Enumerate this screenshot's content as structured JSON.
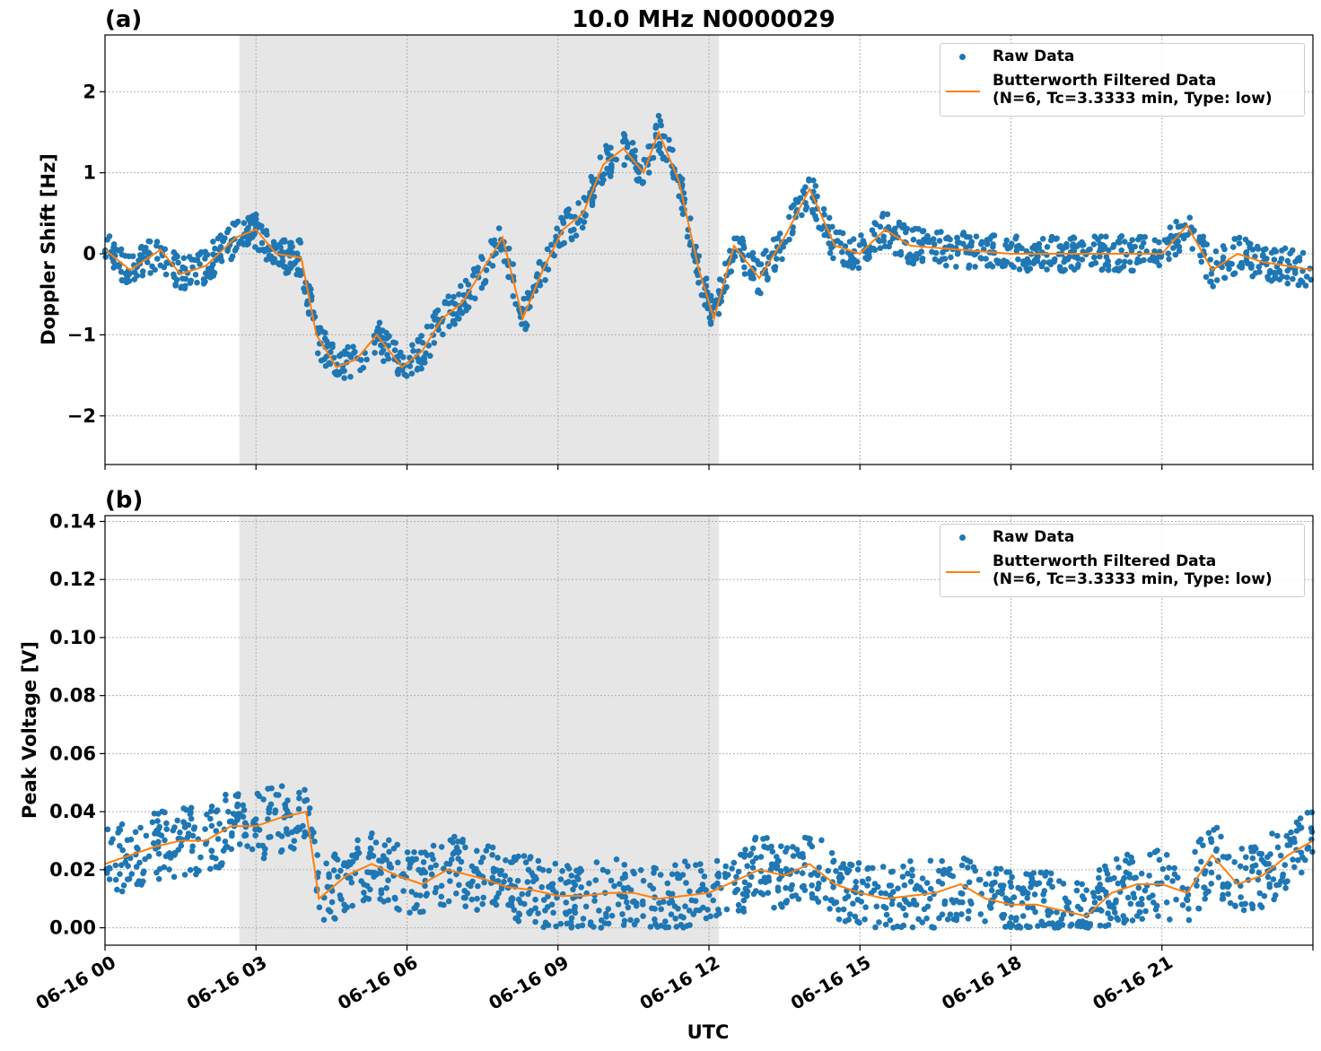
{
  "figure": {
    "title": "10.0 MHz N0000029",
    "xlabel": "UTC",
    "x_tick_labels": [
      "06-16 00",
      "06-16 03",
      "06-16 06",
      "06-16 09",
      "06-16 12",
      "06-16 15",
      "06-16 18",
      "06-16 21"
    ],
    "shaded_span_hours": [
      2.67,
      12.2
    ],
    "colors": {
      "raw": "#1f77b4",
      "filtered": "#ff7f0e",
      "shade": "#e6e6e6",
      "grid": "#b0b0b0"
    }
  },
  "legend": {
    "raw_label": "Raw Data",
    "filtered_label_line1": "Butterworth Filtered Data",
    "filtered_label_line2": "(N=6, Tc=3.3333 min, Type: low)"
  },
  "chart_data": [
    {
      "type": "scatter",
      "panel_label": "(a)",
      "title": "10.0 MHz N0000029",
      "xlabel": "",
      "ylabel": "Doppler Shift [Hz]",
      "xlim_hours": [
        0,
        24
      ],
      "ylim": [
        -2.6,
        2.7
      ],
      "yticks": [
        -2,
        -1,
        0,
        1,
        2
      ],
      "ytick_labels": [
        "−2",
        "−1",
        "0",
        "1",
        "2"
      ],
      "grid": true,
      "legend_position": "top-right",
      "series": [
        {
          "name": "Raw Data",
          "kind": "scatter",
          "x_hours": [
            0,
            0.5,
            1.1,
            1.5,
            2.0,
            2.6,
            3.0,
            3.4,
            3.9,
            4.2,
            4.6,
            5.0,
            5.4,
            5.9,
            6.3,
            6.7,
            7.1,
            7.5,
            7.9,
            8.3,
            8.7,
            9.1,
            9.5,
            9.9,
            10.3,
            10.7,
            11.0,
            11.4,
            11.8,
            12.1,
            12.5,
            13.0,
            13.5,
            14.0,
            14.5,
            15.0,
            15.5,
            16.0,
            17.0,
            18.0,
            19.0,
            20.0,
            21.0,
            21.5,
            22.0,
            22.5,
            23.0,
            23.5,
            24.0
          ],
          "y": [
            0.05,
            -0.2,
            0.05,
            -0.25,
            -0.15,
            0.2,
            0.3,
            0.0,
            -0.05,
            -1.0,
            -1.4,
            -1.3,
            -1.0,
            -1.4,
            -1.2,
            -0.8,
            -0.6,
            -0.2,
            0.2,
            -0.8,
            -0.2,
            0.3,
            0.5,
            1.1,
            1.3,
            1.0,
            1.5,
            0.9,
            -0.2,
            -0.8,
            0.1,
            -0.3,
            0.2,
            0.8,
            0.1,
            0.0,
            0.3,
            0.1,
            0.05,
            0.0,
            0.0,
            0.0,
            0.0,
            0.35,
            -0.2,
            0.0,
            -0.1,
            -0.15,
            -0.2
          ]
        },
        {
          "name": "Butterworth Filtered Data\n(N=6, Tc=3.3333 min, Type: low)",
          "kind": "line",
          "x_hours": [
            0,
            0.5,
            1.1,
            1.5,
            2.0,
            2.6,
            3.0,
            3.4,
            3.9,
            4.2,
            4.6,
            5.0,
            5.4,
            5.9,
            6.3,
            6.7,
            7.1,
            7.5,
            7.9,
            8.3,
            8.7,
            9.1,
            9.5,
            9.9,
            10.3,
            10.7,
            11.0,
            11.4,
            11.8,
            12.1,
            12.5,
            13.0,
            13.5,
            14.0,
            14.5,
            15.0,
            15.5,
            16.0,
            17.0,
            18.0,
            19.0,
            20.0,
            21.0,
            21.5,
            22.0,
            22.5,
            23.0,
            23.5,
            24.0
          ],
          "y": [
            0.05,
            -0.2,
            0.05,
            -0.25,
            -0.15,
            0.2,
            0.3,
            0.0,
            -0.05,
            -1.0,
            -1.4,
            -1.3,
            -1.0,
            -1.4,
            -1.2,
            -0.8,
            -0.6,
            -0.2,
            0.2,
            -0.8,
            -0.2,
            0.3,
            0.5,
            1.1,
            1.3,
            1.0,
            1.5,
            0.9,
            -0.2,
            -0.8,
            0.1,
            -0.3,
            0.2,
            0.8,
            0.1,
            0.0,
            0.3,
            0.1,
            0.05,
            0.0,
            0.0,
            0.0,
            0.0,
            0.35,
            -0.2,
            0.0,
            -0.1,
            -0.15,
            -0.2
          ]
        }
      ]
    },
    {
      "type": "scatter",
      "panel_label": "(b)",
      "xlabel": "UTC",
      "ylabel": "Peak Voltage [V]",
      "xlim_hours": [
        0,
        24
      ],
      "ylim": [
        -0.006,
        0.142
      ],
      "yticks": [
        0.0,
        0.02,
        0.04,
        0.06,
        0.08,
        0.1,
        0.12,
        0.14
      ],
      "ytick_labels": [
        "0.00",
        "0.02",
        "0.04",
        "0.06",
        "0.08",
        "0.10",
        "0.12",
        "0.14"
      ],
      "grid": true,
      "legend_position": "top-right",
      "series": [
        {
          "name": "Raw Data",
          "kind": "scatter",
          "x_hours": [
            0,
            0.5,
            1.0,
            1.5,
            2.0,
            2.5,
            3.0,
            3.5,
            4.0,
            4.25,
            4.8,
            5.3,
            5.8,
            6.3,
            6.8,
            7.5,
            8.0,
            8.5,
            9.0,
            9.5,
            10.0,
            10.5,
            11.0,
            11.5,
            12.0,
            12.5,
            13.0,
            13.5,
            14.0,
            14.5,
            15.0,
            15.5,
            16.0,
            16.5,
            17.0,
            17.5,
            18.0,
            18.5,
            19.0,
            19.5,
            20.0,
            20.5,
            21.0,
            21.5,
            22.0,
            22.5,
            23.0,
            23.5,
            24.0
          ],
          "y": [
            0.022,
            0.025,
            0.028,
            0.03,
            0.03,
            0.035,
            0.035,
            0.038,
            0.04,
            0.01,
            0.018,
            0.022,
            0.018,
            0.015,
            0.02,
            0.017,
            0.014,
            0.013,
            0.011,
            0.011,
            0.012,
            0.012,
            0.01,
            0.011,
            0.012,
            0.016,
            0.02,
            0.018,
            0.022,
            0.015,
            0.012,
            0.01,
            0.011,
            0.012,
            0.015,
            0.01,
            0.008,
            0.008,
            0.006,
            0.004,
            0.012,
            0.015,
            0.015,
            0.012,
            0.025,
            0.015,
            0.018,
            0.025,
            0.03
          ]
        },
        {
          "name": "Butterworth Filtered Data\n(N=6, Tc=3.3333 min, Type: low)",
          "kind": "line",
          "x_hours": [
            0,
            0.5,
            1.0,
            1.5,
            2.0,
            2.5,
            3.0,
            3.5,
            4.0,
            4.25,
            4.8,
            5.3,
            5.8,
            6.3,
            6.8,
            7.5,
            8.0,
            8.5,
            9.0,
            9.5,
            10.0,
            10.5,
            11.0,
            11.5,
            12.0,
            12.5,
            13.0,
            13.5,
            14.0,
            14.5,
            15.0,
            15.5,
            16.0,
            16.5,
            17.0,
            17.5,
            18.0,
            18.5,
            19.0,
            19.5,
            20.0,
            20.5,
            21.0,
            21.5,
            22.0,
            22.5,
            23.0,
            23.5,
            24.0
          ],
          "y": [
            0.022,
            0.025,
            0.028,
            0.03,
            0.03,
            0.035,
            0.035,
            0.038,
            0.04,
            0.01,
            0.018,
            0.022,
            0.018,
            0.015,
            0.02,
            0.017,
            0.014,
            0.013,
            0.011,
            0.011,
            0.012,
            0.012,
            0.01,
            0.011,
            0.012,
            0.016,
            0.02,
            0.018,
            0.022,
            0.015,
            0.012,
            0.01,
            0.011,
            0.012,
            0.015,
            0.01,
            0.008,
            0.008,
            0.006,
            0.004,
            0.012,
            0.015,
            0.015,
            0.012,
            0.025,
            0.015,
            0.018,
            0.025,
            0.03
          ]
        }
      ]
    }
  ]
}
